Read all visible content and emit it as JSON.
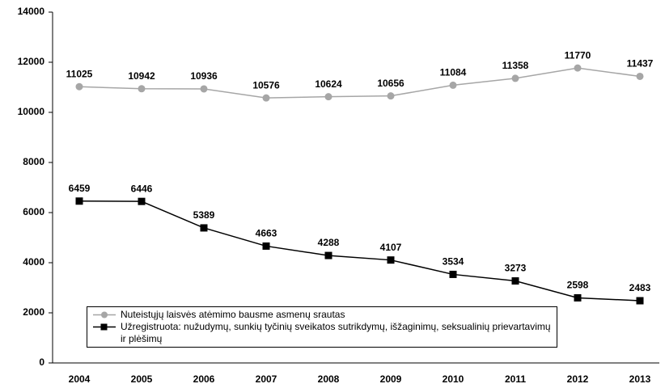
{
  "chart_data": {
    "type": "line",
    "categories": [
      "2004",
      "2005",
      "2006",
      "2007",
      "2008",
      "2009",
      "2010",
      "2011",
      "2012",
      "2013"
    ],
    "series": [
      {
        "name": "Nuteistųjų laisvės atėmimo bausme asmenų srautas",
        "color": "#a6a6a6",
        "marker": "circle",
        "values": [
          11025,
          10942,
          10936,
          10576,
          10624,
          10656,
          11084,
          11358,
          11770,
          11437
        ]
      },
      {
        "name": "Užregistruota: nužudymų, sunkių tyčinių sveikatos sutrikdymų, išžaginimų, seksualinių prievartavimų ir plėšimų",
        "color": "#000000",
        "marker": "square",
        "values": [
          6459,
          6446,
          5389,
          4663,
          4288,
          4107,
          3534,
          3273,
          2598,
          2483
        ]
      }
    ],
    "ylim": [
      0,
      14000
    ],
    "yticks": [
      0,
      2000,
      4000,
      6000,
      8000,
      10000,
      12000,
      14000
    ],
    "grid": false
  }
}
